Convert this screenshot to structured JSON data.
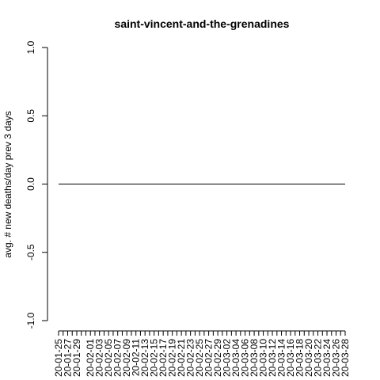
{
  "chart_data": {
    "type": "line",
    "title": "saint-vincent-and-the-grenadines",
    "xlabel": "",
    "ylabel": "avg. # new deaths/day prev  3  days",
    "ylim": [
      -1.0,
      1.0
    ],
    "y_ticks": [
      "-1.0",
      "-0.5",
      "0.0",
      "0.5",
      "1.0"
    ],
    "x": [
      "20-01-25",
      "20-01-26",
      "20-01-27",
      "20-01-28",
      "20-01-29",
      "20-01-30",
      "20-01-31",
      "20-02-01",
      "20-02-02",
      "20-02-03",
      "20-02-04",
      "20-02-05",
      "20-02-06",
      "20-02-07",
      "20-02-08",
      "20-02-09",
      "20-02-10",
      "20-02-11",
      "20-02-12",
      "20-02-13",
      "20-02-14",
      "20-02-15",
      "20-02-16",
      "20-02-17",
      "20-02-18",
      "20-02-19",
      "20-02-20",
      "20-02-21",
      "20-02-22",
      "20-02-23",
      "20-02-24",
      "20-02-25",
      "20-02-26",
      "20-02-27",
      "20-02-28",
      "20-02-29",
      "20-03-01",
      "20-03-02",
      "20-03-03",
      "20-03-04",
      "20-03-05",
      "20-03-06",
      "20-03-07",
      "20-03-08",
      "20-03-09",
      "20-03-10",
      "20-03-11",
      "20-03-12",
      "20-03-13",
      "20-03-14",
      "20-03-15",
      "20-03-16",
      "20-03-17",
      "20-03-18",
      "20-03-19",
      "20-03-20",
      "20-03-21",
      "20-03-22",
      "20-03-23",
      "20-03-24",
      "20-03-25",
      "20-03-26",
      "20-03-27",
      "20-03-28"
    ],
    "x_tick_labels": [
      "20-01-25",
      "20-01-27",
      "20-01-29",
      "20-02-01",
      "20-02-03",
      "20-02-05",
      "20-02-07",
      "20-02-09",
      "20-02-11",
      "20-02-13",
      "20-02-15",
      "20-02-17",
      "20-02-19",
      "20-02-21",
      "20-02-23",
      "20-02-25",
      "20-02-27",
      "20-02-29",
      "20-03-02",
      "20-03-04",
      "20-03-06",
      "20-03-08",
      "20-03-10",
      "20-03-12",
      "20-03-14",
      "20-03-16",
      "20-03-18",
      "20-03-20",
      "20-03-22",
      "20-03-24",
      "20-03-26",
      "20-03-28"
    ],
    "series": [
      {
        "values": [
          0,
          0,
          0,
          0,
          0,
          0,
          0,
          0,
          0,
          0,
          0,
          0,
          0,
          0,
          0,
          0,
          0,
          0,
          0,
          0,
          0,
          0,
          0,
          0,
          0,
          0,
          0,
          0,
          0,
          0,
          0,
          0,
          0,
          0,
          0,
          0,
          0,
          0,
          0,
          0,
          0,
          0,
          0,
          0,
          0,
          0,
          0,
          0,
          0,
          0,
          0,
          0,
          0,
          0,
          0,
          0,
          0,
          0,
          0,
          0,
          0,
          0,
          0,
          0
        ]
      }
    ],
    "grid": false,
    "legend": "none"
  }
}
